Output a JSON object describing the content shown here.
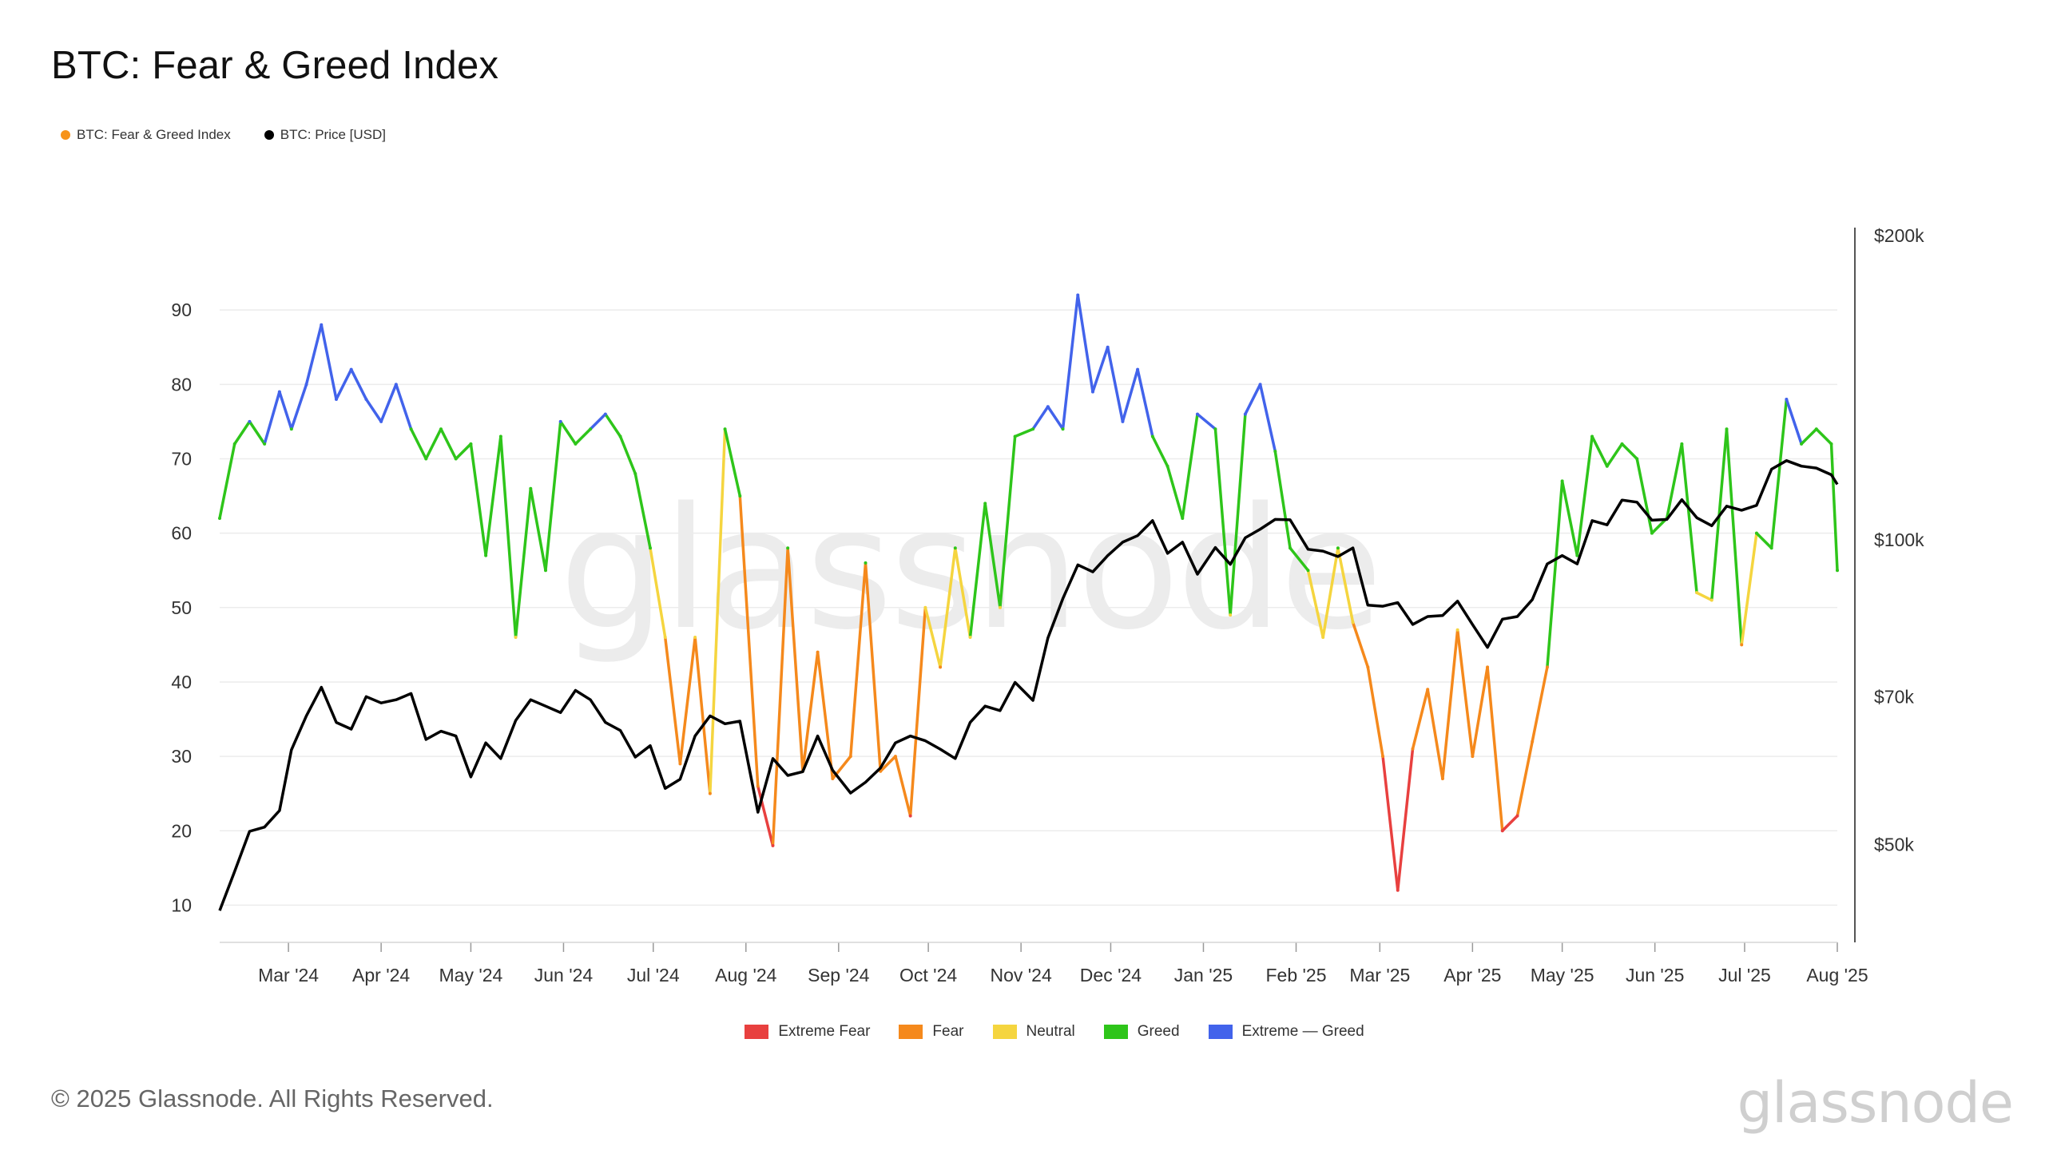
{
  "title": "BTC: Fear & Greed Index",
  "legend_top": [
    {
      "label": "BTC: Fear & Greed Index",
      "color": "#f7931a"
    },
    {
      "label": "BTC: Price [USD]",
      "color": "#000000"
    }
  ],
  "legend_bottom": [
    {
      "label": "Extreme Fear",
      "color": "#e8403f"
    },
    {
      "label": "Fear",
      "color": "#f5891c"
    },
    {
      "label": "Neutral",
      "color": "#f5d53f"
    },
    {
      "label": "Greed",
      "color": "#2ec51a"
    },
    {
      "label": "Extreme — Greed",
      "color": "#4263eb"
    }
  ],
  "footer": "© 2025 Glassnode. All Rights Reserved.",
  "brand": "glassnode",
  "watermark": "glassnode",
  "chart_data": {
    "type": "line",
    "x_tick_labels": [
      "Mar '24",
      "Apr '24",
      "May '24",
      "Jun '24",
      "Jul '24",
      "Aug '24",
      "Sep '24",
      "Oct '24",
      "Nov '24",
      "Dec '24",
      "Jan '25",
      "Feb '25",
      "Mar '25",
      "Apr '25",
      "May '25",
      "Jun '25",
      "Jul '25",
      "Aug '25"
    ],
    "y_left_ticks": [
      10,
      20,
      30,
      40,
      50,
      60,
      70,
      80,
      90
    ],
    "y_left_range": [
      5,
      100
    ],
    "y_right_ticks": [
      "$50k",
      "$70k",
      "$100k",
      "$200k"
    ],
    "y_right_tick_values": [
      50000,
      70000,
      100000,
      200000
    ],
    "y_right_range": [
      40000,
      200000
    ],
    "y_right_scale": "log",
    "x_range": [
      "2024-02-07",
      "2025-08-01"
    ],
    "zones": [
      {
        "name": "Extreme Fear",
        "max": 25,
        "color": "#e8403f"
      },
      {
        "name": "Fear",
        "max": 46,
        "color": "#f5891c"
      },
      {
        "name": "Neutral",
        "max": 54,
        "color": "#f5d53f"
      },
      {
        "name": "Greed",
        "max": 75,
        "color": "#2ec51a"
      },
      {
        "name": "Extreme Greed",
        "max": 100,
        "color": "#4263eb"
      }
    ],
    "series": [
      {
        "name": "BTC: Fear & Greed Index",
        "x": [
          "2024-02-07",
          "2024-02-12",
          "2024-02-17",
          "2024-02-22",
          "2024-02-27",
          "2024-03-02",
          "2024-03-07",
          "2024-03-12",
          "2024-03-17",
          "2024-03-22",
          "2024-03-27",
          "2024-04-01",
          "2024-04-06",
          "2024-04-11",
          "2024-04-16",
          "2024-04-21",
          "2024-04-26",
          "2024-05-01",
          "2024-05-06",
          "2024-05-11",
          "2024-05-16",
          "2024-05-21",
          "2024-05-26",
          "2024-05-31",
          "2024-06-05",
          "2024-06-10",
          "2024-06-15",
          "2024-06-20",
          "2024-06-25",
          "2024-06-30",
          "2024-07-05",
          "2024-07-10",
          "2024-07-15",
          "2024-07-20",
          "2024-07-25",
          "2024-07-30",
          "2024-08-05",
          "2024-08-10",
          "2024-08-15",
          "2024-08-20",
          "2024-08-25",
          "2024-08-30",
          "2024-09-05",
          "2024-09-10",
          "2024-09-15",
          "2024-09-20",
          "2024-09-25",
          "2024-09-30",
          "2024-10-05",
          "2024-10-10",
          "2024-10-15",
          "2024-10-20",
          "2024-10-25",
          "2024-10-30",
          "2024-11-05",
          "2024-11-10",
          "2024-11-15",
          "2024-11-20",
          "2024-11-25",
          "2024-11-30",
          "2024-12-05",
          "2024-12-10",
          "2024-12-15",
          "2024-12-20",
          "2024-12-25",
          "2024-12-30",
          "2025-01-05",
          "2025-01-10",
          "2025-01-15",
          "2025-01-20",
          "2025-01-25",
          "2025-01-30",
          "2025-02-05",
          "2025-02-10",
          "2025-02-15",
          "2025-02-20",
          "2025-02-25",
          "2025-03-02",
          "2025-03-07",
          "2025-03-12",
          "2025-03-17",
          "2025-03-22",
          "2025-03-27",
          "2025-04-01",
          "2025-04-06",
          "2025-04-11",
          "2025-04-16",
          "2025-04-21",
          "2025-04-26",
          "2025-05-01",
          "2025-05-06",
          "2025-05-11",
          "2025-05-16",
          "2025-05-21",
          "2025-05-26",
          "2025-05-31",
          "2025-06-05",
          "2025-06-10",
          "2025-06-15",
          "2025-06-20",
          "2025-06-25",
          "2025-06-30",
          "2025-07-05",
          "2025-07-10",
          "2025-07-15",
          "2025-07-20",
          "2025-07-25",
          "2025-07-30",
          "2025-08-01"
        ],
        "values": [
          62,
          72,
          75,
          72,
          79,
          74,
          80,
          88,
          78,
          82,
          78,
          75,
          80,
          74,
          70,
          74,
          70,
          72,
          57,
          73,
          46,
          66,
          55,
          75,
          72,
          74,
          76,
          73,
          68,
          58,
          46,
          29,
          46,
          25,
          74,
          65,
          26,
          18,
          58,
          28,
          44,
          27,
          30,
          56,
          28,
          30,
          22,
          50,
          42,
          58,
          46,
          64,
          50,
          73,
          74,
          77,
          74,
          92,
          79,
          85,
          75,
          82,
          73,
          69,
          62,
          76,
          74,
          49,
          76,
          80,
          71,
          58,
          55,
          46,
          58,
          48,
          42,
          30,
          12,
          31,
          39,
          27,
          47,
          30,
          42,
          20,
          22,
          32,
          42,
          67,
          57,
          73,
          69,
          72,
          70,
          60,
          62,
          72,
          52,
          51,
          74,
          45,
          60,
          58,
          78,
          72,
          74,
          72,
          55
        ]
      },
      {
        "name": "BTC: Price [USD]",
        "x": [
          "2024-02-07",
          "2024-02-12",
          "2024-02-17",
          "2024-02-22",
          "2024-02-27",
          "2024-03-02",
          "2024-03-07",
          "2024-03-12",
          "2024-03-17",
          "2024-03-22",
          "2024-03-27",
          "2024-04-01",
          "2024-04-06",
          "2024-04-11",
          "2024-04-16",
          "2024-04-21",
          "2024-04-26",
          "2024-05-01",
          "2024-05-06",
          "2024-05-11",
          "2024-05-16",
          "2024-05-21",
          "2024-05-26",
          "2024-05-31",
          "2024-06-05",
          "2024-06-10",
          "2024-06-15",
          "2024-06-20",
          "2024-06-25",
          "2024-06-30",
          "2024-07-05",
          "2024-07-10",
          "2024-07-15",
          "2024-07-20",
          "2024-07-25",
          "2024-07-30",
          "2024-08-05",
          "2024-08-10",
          "2024-08-15",
          "2024-08-20",
          "2024-08-25",
          "2024-08-30",
          "2024-09-05",
          "2024-09-10",
          "2024-09-15",
          "2024-09-20",
          "2024-09-25",
          "2024-09-30",
          "2024-10-05",
          "2024-10-10",
          "2024-10-15",
          "2024-10-20",
          "2024-10-25",
          "2024-10-30",
          "2024-11-05",
          "2024-11-10",
          "2024-11-15",
          "2024-11-20",
          "2024-11-25",
          "2024-11-30",
          "2024-12-05",
          "2024-12-10",
          "2024-12-15",
          "2024-12-20",
          "2024-12-25",
          "2024-12-30",
          "2025-01-05",
          "2025-01-10",
          "2025-01-15",
          "2025-01-20",
          "2025-01-25",
          "2025-01-30",
          "2025-02-05",
          "2025-02-10",
          "2025-02-15",
          "2025-02-20",
          "2025-02-25",
          "2025-03-02",
          "2025-03-07",
          "2025-03-12",
          "2025-03-17",
          "2025-03-22",
          "2025-03-27",
          "2025-04-01",
          "2025-04-06",
          "2025-04-11",
          "2025-04-16",
          "2025-04-21",
          "2025-04-26",
          "2025-05-01",
          "2025-05-06",
          "2025-05-11",
          "2025-05-16",
          "2025-05-21",
          "2025-05-26",
          "2025-05-31",
          "2025-06-05",
          "2025-06-10",
          "2025-06-15",
          "2025-06-20",
          "2025-06-25",
          "2025-06-30",
          "2025-07-05",
          "2025-07-10",
          "2025-07-15",
          "2025-07-20",
          "2025-07-25",
          "2025-07-30",
          "2025-08-01"
        ],
        "values": [
          43000,
          47000,
          51500,
          52000,
          54000,
          62000,
          67000,
          71500,
          66000,
          65000,
          70000,
          69000,
          69500,
          70500,
          63500,
          64700,
          64000,
          58300,
          63000,
          60800,
          66300,
          69500,
          68500,
          67500,
          71000,
          69500,
          66000,
          64800,
          61000,
          62600,
          56800,
          58000,
          64000,
          67000,
          65800,
          66200,
          53800,
          60800,
          58500,
          59000,
          64000,
          59200,
          56200,
          57600,
          59500,
          63000,
          64000,
          63300,
          62100,
          60800,
          66000,
          68500,
          67800,
          72300,
          69400,
          80000,
          87500,
          94500,
          93000,
          96500,
          99500,
          101000,
          104500,
          97000,
          99500,
          92500,
          98300,
          94600,
          100500,
          102500,
          104800,
          104700,
          97900,
          97500,
          96300,
          98200,
          86200,
          86000,
          86700,
          82500,
          84000,
          84200,
          87000,
          82500,
          78300,
          83500,
          84000,
          87300,
          94700,
          96500,
          94700,
          104500,
          103500,
          109500,
          109000,
          104600,
          104800,
          109600,
          105200,
          103300,
          108000,
          107000,
          108200,
          117500,
          119800,
          118300,
          117800,
          116000,
          113500
        ]
      }
    ]
  }
}
